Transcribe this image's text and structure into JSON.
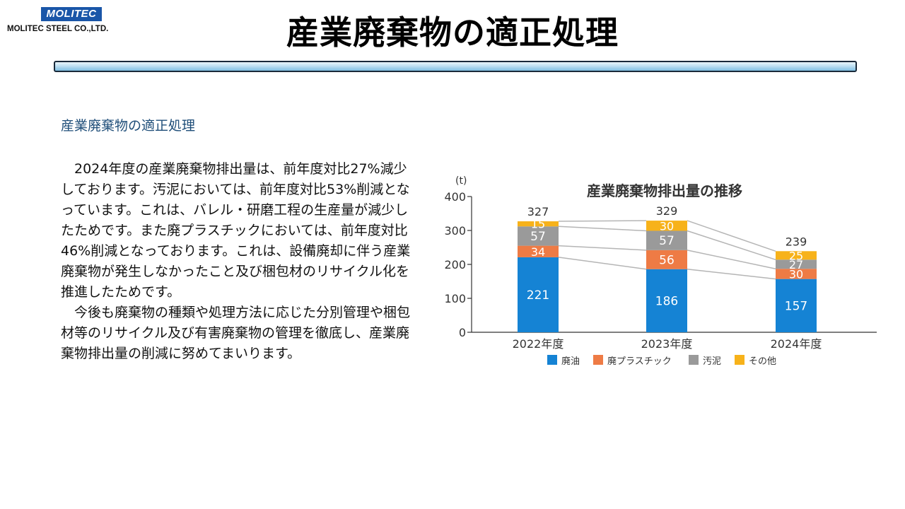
{
  "header": {
    "logo_badge": "MOLITEC",
    "company_name": "MOLITEC STEEL CO.,LTD.",
    "title": "産業廃棄物の適正処理"
  },
  "content": {
    "heading": "産業廃棄物の適正処理",
    "paragraph1": "2024年度の産業廃棄物排出量は、前年度対比27%減少しております。汚泥においては、前年度対比53%削減となっています。これは、バレル・研磨工程の生産量が減少したためです。また廃プラスチックにおいては、前年度対比46%削減となっております。これは、設備廃却に伴う産業廃棄物が発生しなかったこと及び梱包材のリサイクル化を推進したためです。",
    "paragraph2": "今後も廃棄物の種類や処理方法に応じた分別管理や梱包材等のリサイクル及び有害廃棄物の管理を徹底し、産業廃棄物排出量の削減に努めてまいります。"
  },
  "chart_data": {
    "type": "bar",
    "stacked": true,
    "title": "産業廃棄物排出量の推移",
    "ylabel": "(t)",
    "ylim": [
      0,
      400
    ],
    "yticks": [
      0,
      100,
      200,
      300,
      400
    ],
    "categories": [
      "2022年度",
      "2023年度",
      "2024年度"
    ],
    "totals": [
      327,
      329,
      239
    ],
    "series": [
      {
        "name": "廃油",
        "values": [
          221,
          186,
          157
        ],
        "color": "#1583d4"
      },
      {
        "name": "廃プラスチック",
        "values": [
          34,
          56,
          30
        ],
        "color": "#ee7b45"
      },
      {
        "name": "汚泥",
        "values": [
          57,
          57,
          27
        ],
        "color": "#9a9a9a"
      },
      {
        "name": "その他",
        "values": [
          15,
          30,
          25
        ],
        "color": "#f7b21a"
      }
    ],
    "legend_position": "bottom",
    "connector_lines": true
  }
}
